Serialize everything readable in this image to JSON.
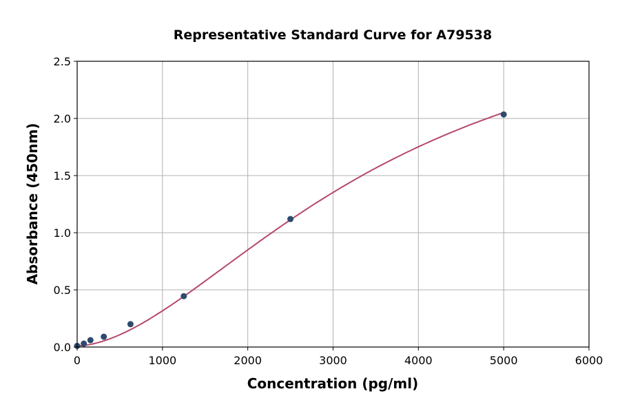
{
  "chart_data": {
    "type": "scatter",
    "title": "Representative Standard Curve for A79538",
    "xlabel": "Concentration (pg/ml)",
    "ylabel": "Absorbance (450nm)",
    "xlim": [
      0,
      6000
    ],
    "ylim": [
      0,
      2.5
    ],
    "xticks": [
      0,
      1000,
      2000,
      3000,
      4000,
      5000,
      6000
    ],
    "yticks": [
      "0.0",
      "0.5",
      "1.0",
      "1.5",
      "2.0",
      "2.5"
    ],
    "grid": true,
    "points": {
      "x": [
        0,
        78,
        156,
        312.5,
        625,
        1250,
        2500,
        5000
      ],
      "y": [
        0.01,
        0.03,
        0.06,
        0.09,
        0.2,
        0.445,
        1.12,
        2.035
      ]
    },
    "point_color": "#2e4a6e",
    "curve_color": "#b5476b",
    "curve": "fitted standard curve"
  }
}
